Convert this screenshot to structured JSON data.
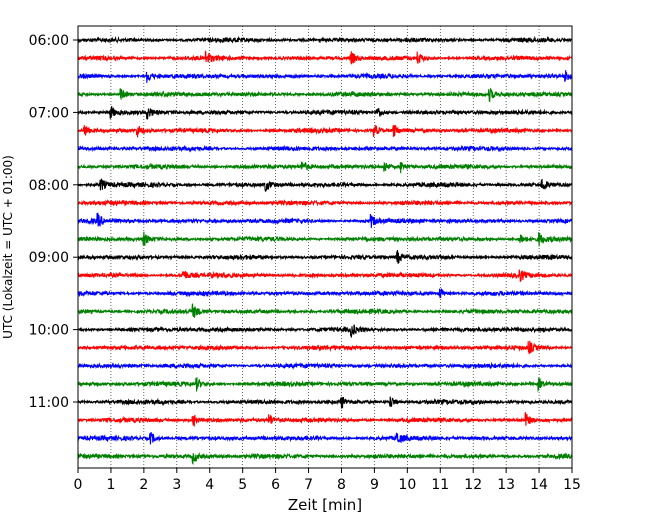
{
  "chart_data": {
    "type": "line",
    "title": "",
    "xlabel": "Zeit  [min]",
    "ylabel": "UTC (Lokalzeit = UTC + 01:00)",
    "xlim": [
      0,
      15
    ],
    "x_ticks": [
      0,
      1,
      2,
      3,
      4,
      5,
      6,
      7,
      8,
      9,
      10,
      11,
      12,
      13,
      14,
      15
    ],
    "x_grid": "dotted vertical gridlines at each minute",
    "y_tick_labels": [
      "06:00",
      "07:00",
      "08:00",
      "09:00",
      "10:00",
      "11:00"
    ],
    "trace_interval_minutes": 15,
    "trace_colors": [
      "#000000",
      "#ff0000",
      "#0000ff",
      "#008000"
    ],
    "traces": [
      {
        "start": "06:00",
        "color": "#000000",
        "events": []
      },
      {
        "start": "06:15",
        "color": "#ff0000",
        "events": [
          3.9,
          8.3,
          10.3
        ]
      },
      {
        "start": "06:30",
        "color": "#0000ff",
        "events": [
          2.1,
          14.8
        ]
      },
      {
        "start": "06:45",
        "color": "#008000",
        "events": [
          1.3,
          12.5
        ]
      },
      {
        "start": "07:00",
        "color": "#000000",
        "events": [
          1.0,
          2.1,
          9.1
        ]
      },
      {
        "start": "07:15",
        "color": "#ff0000",
        "events": [
          0.2,
          1.8,
          9.0,
          9.6
        ]
      },
      {
        "start": "07:30",
        "color": "#0000ff",
        "events": []
      },
      {
        "start": "07:45",
        "color": "#008000",
        "events": [
          6.8,
          9.3,
          9.8
        ]
      },
      {
        "start": "08:00",
        "color": "#000000",
        "events": [
          0.7,
          5.7,
          14.1
        ]
      },
      {
        "start": "08:15",
        "color": "#ff0000",
        "events": []
      },
      {
        "start": "08:30",
        "color": "#0000ff",
        "events": [
          0.6,
          8.9
        ]
      },
      {
        "start": "08:45",
        "color": "#008000",
        "events": [
          2.0,
          13.4,
          14.0
        ]
      },
      {
        "start": "09:00",
        "color": "#000000",
        "events": [
          9.7
        ]
      },
      {
        "start": "09:15",
        "color": "#ff0000",
        "events": [
          3.2,
          13.4
        ]
      },
      {
        "start": "09:30",
        "color": "#0000ff",
        "events": [
          11.0
        ]
      },
      {
        "start": "09:45",
        "color": "#008000",
        "events": [
          3.5
        ]
      },
      {
        "start": "10:00",
        "color": "#000000",
        "events": [
          8.3
        ]
      },
      {
        "start": "10:15",
        "color": "#ff0000",
        "events": [
          13.7
        ]
      },
      {
        "start": "10:30",
        "color": "#0000ff",
        "events": []
      },
      {
        "start": "10:45",
        "color": "#008000",
        "events": [
          3.6,
          14.0
        ]
      },
      {
        "start": "11:00",
        "color": "#000000",
        "events": [
          8.0,
          9.5
        ]
      },
      {
        "start": "11:15",
        "color": "#ff0000",
        "events": [
          3.5,
          5.8,
          13.6
        ]
      },
      {
        "start": "11:30",
        "color": "#0000ff",
        "events": [
          2.2,
          9.7
        ]
      },
      {
        "start": "11:45",
        "color": "#008000",
        "events": [
          3.5
        ]
      }
    ]
  }
}
